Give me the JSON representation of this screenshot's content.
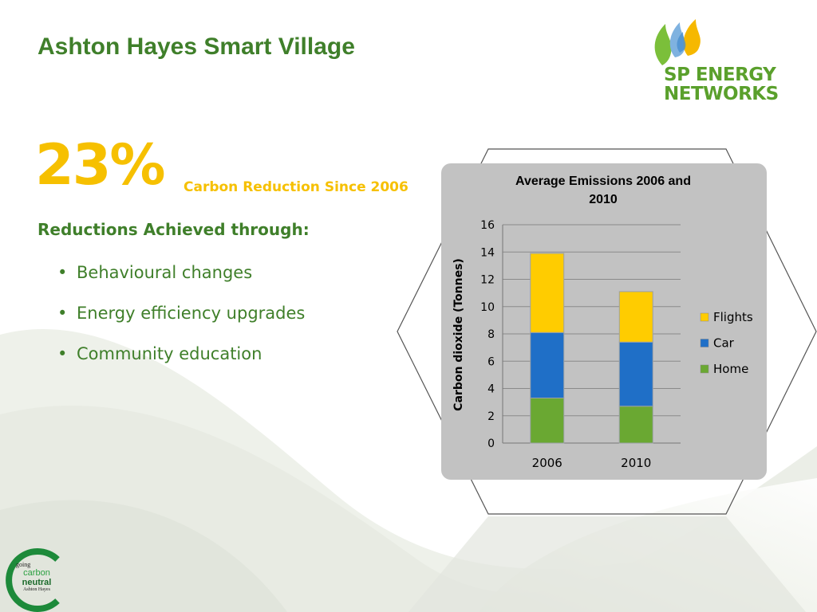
{
  "slide": {
    "title": "Ashton Hayes Smart Village",
    "big_percent": "23%",
    "percent_caption": "Carbon Reduction Since 2006",
    "subheading": "Reductions Achieved through:",
    "bullets": [
      "Behavioural changes",
      "Energy efficiency upgrades",
      "Community education"
    ]
  },
  "logos": {
    "sp_energy": {
      "line1": "SP ENERGY",
      "line2": "NETWORKS"
    },
    "going_carbon_neutral": {
      "going": "going",
      "carbon": "carbon",
      "neutral": "neutral",
      "place": "Ashton Hayes"
    }
  },
  "colors": {
    "green": "#3f7f2a",
    "yellow": "#f6c000",
    "flights": "#ffcc00",
    "car": "#1f6fc7",
    "home": "#6aa832"
  },
  "chart_data": {
    "type": "bar",
    "stacked": true,
    "title": "Average Emissions 2006 and 2010",
    "xlabel": "",
    "ylabel": "Carbon dioxide (Tonnes)",
    "categories": [
      "2006",
      "2010"
    ],
    "ylim": [
      0,
      16
    ],
    "yticks": [
      0,
      2,
      4,
      6,
      8,
      10,
      12,
      14,
      16
    ],
    "grid": true,
    "legend_position": "right",
    "series": [
      {
        "name": "Home",
        "values": [
          3.3,
          2.7
        ],
        "color": "#6aa832"
      },
      {
        "name": "Car",
        "values": [
          4.8,
          4.7
        ],
        "color": "#1f6fc7"
      },
      {
        "name": "Flights",
        "values": [
          5.8,
          3.7
        ],
        "color": "#ffcc00"
      }
    ]
  }
}
